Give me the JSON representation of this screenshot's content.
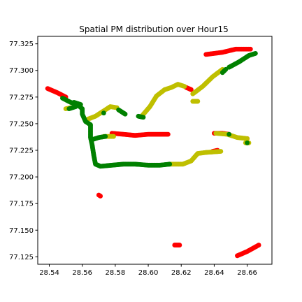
{
  "chart_data": {
    "type": "scatter",
    "title": "Spatial PM distribution over Hour15",
    "xlabel": "",
    "ylabel": "",
    "xlim": [
      28.533,
      28.675
    ],
    "ylim": [
      77.118,
      77.332
    ],
    "xticks": [
      "28.54",
      "28.56",
      "28.58",
      "28.60",
      "28.62",
      "28.64",
      "28.66"
    ],
    "xtick_values": [
      28.54,
      28.56,
      28.58,
      28.6,
      28.62,
      28.64,
      28.66
    ],
    "yticks": [
      "77.125",
      "77.150",
      "77.175",
      "77.200",
      "77.225",
      "77.250",
      "77.275",
      "77.300",
      "77.325"
    ],
    "ytick_values": [
      77.125,
      77.15,
      77.175,
      77.2,
      77.225,
      77.25,
      77.275,
      77.3,
      77.325
    ],
    "grid": false,
    "colors": {
      "red": "#ff0000",
      "olive": "#bfbf00",
      "green": "#008000"
    },
    "series": [
      {
        "color": "red",
        "paths": [
          [
            [
              28.539,
              77.283
            ],
            [
              28.545,
              77.279
            ],
            [
              28.55,
              77.275
            ]
          ],
          [
            [
              28.578,
              77.241
            ],
            [
              28.585,
              77.24
            ],
            [
              28.592,
              77.239
            ],
            [
              28.6,
              77.24
            ],
            [
              28.612,
              77.24
            ]
          ],
          [
            [
              28.623,
              77.284
            ],
            [
              28.626,
              77.282
            ]
          ],
          [
            [
              28.635,
              77.315
            ],
            [
              28.645,
              77.317
            ],
            [
              28.653,
              77.32
            ],
            [
              28.662,
              77.32
            ]
          ],
          [
            [
              28.64,
              77.241
            ],
            [
              28.645,
              77.241
            ],
            [
              28.649,
              77.24
            ]
          ],
          [
            [
              28.639,
              77.224
            ],
            [
              28.642,
              77.225
            ]
          ],
          [
            [
              28.66,
              77.236
            ]
          ],
          [
            [
              28.57,
              77.183
            ],
            [
              28.571,
              77.182
            ]
          ],
          [
            [
              28.616,
              77.136
            ],
            [
              28.619,
              77.136
            ]
          ],
          [
            [
              28.654,
              77.126
            ],
            [
              28.66,
              77.13
            ],
            [
              28.667,
              77.136
            ]
          ]
        ]
      },
      {
        "color": "olive",
        "paths": [
          [
            [
              28.55,
              77.264
            ],
            [
              28.553,
              77.265
            ]
          ],
          [
            [
              28.563,
              77.254
            ],
            [
              28.568,
              77.257
            ],
            [
              28.573,
              77.262
            ],
            [
              28.577,
              77.266
            ],
            [
              28.581,
              77.265
            ]
          ],
          [
            [
              28.596,
              77.257
            ],
            [
              28.601,
              77.266
            ],
            [
              28.605,
              77.276
            ],
            [
              28.61,
              77.282
            ],
            [
              28.614,
              77.284
            ],
            [
              28.618,
              77.287
            ],
            [
              28.622,
              77.285
            ]
          ],
          [
            [
              28.627,
              77.278
            ],
            [
              28.633,
              77.285
            ],
            [
              28.639,
              77.294
            ],
            [
              28.645,
              77.301
            ]
          ],
          [
            [
              28.627,
              77.271
            ],
            [
              28.63,
              77.271
            ]
          ],
          [
            [
              28.573,
              77.238
            ],
            [
              28.579,
              77.238
            ]
          ],
          [
            [
              28.613,
              77.212
            ],
            [
              28.621,
              77.212
            ],
            [
              28.626,
              77.215
            ],
            [
              28.63,
              77.222
            ],
            [
              28.635,
              77.223
            ],
            [
              28.644,
              77.224
            ]
          ],
          [
            [
              28.641,
              77.241
            ],
            [
              28.648,
              77.24
            ],
            [
              28.654,
              77.237
            ],
            [
              28.66,
              77.236
            ]
          ],
          [
            [
              28.659,
              77.232
            ],
            [
              28.661,
              77.232
            ]
          ]
        ]
      },
      {
        "color": "green",
        "paths": [
          [
            [
              28.548,
              77.274
            ],
            [
              28.553,
              77.27
            ],
            [
              28.557,
              77.268
            ],
            [
              28.56,
              77.264
            ],
            [
              28.56,
              77.259
            ],
            [
              28.562,
              77.252
            ],
            [
              28.565,
              77.249
            ],
            [
              28.565,
              77.244
            ],
            [
              28.565,
              77.237
            ],
            [
              28.566,
              77.23
            ],
            [
              28.567,
              77.22
            ],
            [
              28.568,
              77.212
            ],
            [
              28.571,
              77.21
            ],
            [
              28.578,
              77.211
            ],
            [
              28.585,
              77.212
            ],
            [
              28.592,
              77.212
            ],
            [
              28.6,
              77.211
            ],
            [
              28.607,
              77.211
            ],
            [
              28.613,
              77.212
            ]
          ],
          [
            [
              28.552,
              77.264
            ],
            [
              28.556,
              77.266
            ]
          ],
          [
            [
              28.555,
              77.27
            ],
            [
              28.559,
              77.268
            ]
          ],
          [
            [
              28.566,
              77.235
            ],
            [
              28.57,
              77.237
            ],
            [
              28.574,
              77.238
            ]
          ],
          [
            [
              28.573,
              77.26
            ]
          ],
          [
            [
              28.582,
              77.263
            ],
            [
              28.586,
              77.259
            ]
          ],
          [
            [
              28.594,
              77.257
            ],
            [
              28.597,
              77.256
            ]
          ],
          [
            [
              28.645,
              77.298
            ],
            [
              28.647,
              77.301
            ]
          ],
          [
            [
              28.649,
              77.303
            ],
            [
              28.655,
              77.308
            ],
            [
              28.661,
              77.314
            ],
            [
              28.665,
              77.316
            ]
          ],
          [
            [
              28.649,
              77.24
            ]
          ],
          [
            [
              28.66,
              77.232
            ]
          ]
        ]
      }
    ]
  }
}
